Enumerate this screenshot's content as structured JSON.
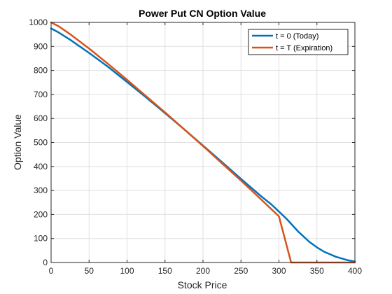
{
  "chart_data": {
    "type": "line",
    "title": "Power Put CN Option Value",
    "xlabel": "Stock Price",
    "ylabel": "Option Value",
    "xlim": [
      0,
      400
    ],
    "ylim": [
      0,
      1000
    ],
    "xticks": [
      0,
      50,
      100,
      150,
      200,
      250,
      300,
      350,
      400
    ],
    "yticks": [
      0,
      100,
      200,
      300,
      400,
      500,
      600,
      700,
      800,
      900,
      1000
    ],
    "xtick_labels": [
      "0",
      "50",
      "100",
      "150",
      "200",
      "250",
      "300",
      "350",
      "400"
    ],
    "ytick_labels": [
      "0",
      "100",
      "200",
      "300",
      "400",
      "500",
      "600",
      "700",
      "800",
      "900",
      "1000"
    ],
    "grid": true,
    "legend_position": "top-right",
    "series": [
      {
        "name": "t = 0 (Today)",
        "color": "#0072BD",
        "x": [
          0,
          10,
          25,
          50,
          75,
          100,
          125,
          150,
          175,
          200,
          225,
          250,
          275,
          290,
          300,
          310,
          325,
          340,
          350,
          360,
          375,
          390,
          400
        ],
        "y": [
          975,
          958,
          928,
          873,
          815,
          752,
          688,
          622,
          555,
          487,
          418,
          348,
          280,
          242,
          212,
          182,
          130,
          86,
          63,
          44,
          24,
          10,
          4
        ]
      },
      {
        "name": "t = T (Expiration)",
        "color": "#D95319",
        "x": [
          0,
          10,
          25,
          50,
          75,
          100,
          125,
          150,
          175,
          200,
          225,
          250,
          275,
          300,
          316,
          330,
          350,
          375,
          400
        ],
        "y": [
          1000,
          984,
          951,
          891,
          827,
          761,
          693,
          625,
          555,
          485,
          413,
          341,
          267,
          192,
          0,
          0,
          0,
          0,
          0
        ]
      }
    ]
  }
}
